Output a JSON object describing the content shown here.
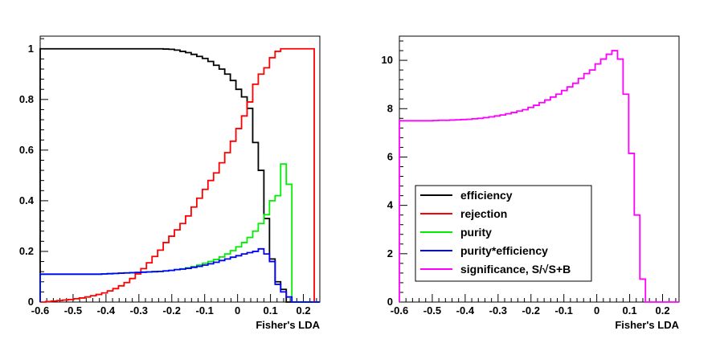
{
  "chart_data": [
    {
      "type": "line",
      "step": true,
      "xlabel": "Fisher's LDA",
      "ylabel": "",
      "xlim": [
        -0.6,
        0.25
      ],
      "ylim": [
        0,
        1.05
      ],
      "xticks": [
        -0.6,
        -0.5,
        -0.4,
        -0.3,
        -0.2,
        -0.1,
        0,
        0.1,
        0.2
      ],
      "xtick_labels": [
        "-0.6",
        "-0.5",
        "-0.4",
        "-0.3",
        "-0.2",
        "-0.1",
        "0",
        "0.1",
        "0.2"
      ],
      "yticks": [
        0,
        0.2,
        0.4,
        0.6,
        0.8,
        1
      ],
      "ytick_labels": [
        "0",
        "0.2",
        "0.4",
        "0.6",
        "0.8",
        "1"
      ],
      "grid": false,
      "legend": false,
      "bin_edges": [
        -0.6,
        -0.583,
        -0.566,
        -0.549,
        -0.532,
        -0.515,
        -0.498,
        -0.481,
        -0.464,
        -0.447,
        -0.43,
        -0.413,
        -0.396,
        -0.379,
        -0.362,
        -0.345,
        -0.328,
        -0.311,
        -0.294,
        -0.277,
        -0.26,
        -0.243,
        -0.226,
        -0.209,
        -0.192,
        -0.175,
        -0.158,
        -0.141,
        -0.124,
        -0.107,
        -0.09,
        -0.073,
        -0.056,
        -0.039,
        -0.022,
        -0.005,
        0.012,
        0.029,
        0.046,
        0.063,
        0.08,
        0.097,
        0.114,
        0.131,
        0.148,
        0.165,
        0.182,
        0.199,
        0.216,
        0.233,
        0.25
      ],
      "series": [
        {
          "name": "efficiency",
          "color": "#000000",
          "values": [
            1,
            1,
            1,
            1,
            1,
            1,
            1,
            1,
            1,
            1,
            1,
            1,
            1,
            1,
            1,
            1,
            1,
            1,
            1,
            1,
            1,
            1,
            0.999,
            0.998,
            0.995,
            0.99,
            0.985,
            0.978,
            0.97,
            0.962,
            0.95,
            0.935,
            0.92,
            0.9,
            0.875,
            0.84,
            0.81,
            0.765,
            0.63,
            0.52,
            0.33,
            0.17,
            0.08,
            0.05,
            0,
            0,
            0,
            0,
            0,
            0
          ]
        },
        {
          "name": "rejection",
          "color": "#ff0000",
          "values": [
            0,
            0.002,
            0.004,
            0.006,
            0.008,
            0.01,
            0.013,
            0.016,
            0.02,
            0.025,
            0.03,
            0.036,
            0.044,
            0.053,
            0.064,
            0.077,
            0.093,
            0.111,
            0.132,
            0.155,
            0.18,
            0.205,
            0.235,
            0.26,
            0.285,
            0.31,
            0.34,
            0.375,
            0.41,
            0.445,
            0.48,
            0.51,
            0.55,
            0.59,
            0.635,
            0.685,
            0.735,
            0.79,
            0.86,
            0.9,
            0.925,
            0.965,
            0.99,
            1,
            1,
            1,
            1,
            1,
            1,
            0
          ]
        },
        {
          "name": "purity",
          "color": "#00ee00",
          "values": [
            0.11,
            0.11,
            0.11,
            0.11,
            0.11,
            0.11,
            0.11,
            0.11,
            0.11,
            0.11,
            0.11,
            0.111,
            0.112,
            0.113,
            0.114,
            0.115,
            0.116,
            0.117,
            0.118,
            0.119,
            0.12,
            0.121,
            0.123,
            0.125,
            0.128,
            0.131,
            0.135,
            0.14,
            0.146,
            0.153,
            0.16,
            0.168,
            0.178,
            0.19,
            0.203,
            0.218,
            0.235,
            0.255,
            0.28,
            0.31,
            0.345,
            0.4,
            0.42,
            0.545,
            0.465,
            0,
            0,
            0,
            0,
            0
          ]
        },
        {
          "name": "purity*efficiency",
          "color": "#0000ff",
          "values": [
            0.11,
            0.11,
            0.11,
            0.11,
            0.11,
            0.11,
            0.11,
            0.11,
            0.11,
            0.11,
            0.11,
            0.111,
            0.112,
            0.113,
            0.114,
            0.115,
            0.116,
            0.117,
            0.118,
            0.119,
            0.12,
            0.121,
            0.123,
            0.125,
            0.128,
            0.13,
            0.133,
            0.137,
            0.141,
            0.146,
            0.151,
            0.157,
            0.164,
            0.17,
            0.177,
            0.183,
            0.19,
            0.195,
            0.2,
            0.21,
            0.19,
            0.16,
            0.07,
            0.04,
            0.02,
            0,
            0,
            0,
            0,
            0
          ]
        }
      ]
    },
    {
      "type": "line",
      "step": true,
      "xlabel": "Fisher's LDA",
      "ylabel": "",
      "xlim": [
        -0.6,
        0.25
      ],
      "ylim": [
        0,
        11
      ],
      "xticks": [
        -0.6,
        -0.5,
        -0.4,
        -0.3,
        -0.2,
        -0.1,
        0,
        0.1,
        0.2
      ],
      "xtick_labels": [
        "-0.6",
        "-0.5",
        "-0.4",
        "-0.3",
        "-0.2",
        "-0.1",
        "0",
        "0.1",
        "0.2"
      ],
      "yticks": [
        0,
        2,
        4,
        6,
        8,
        10
      ],
      "ytick_labels": [
        "0",
        "2",
        "4",
        "6",
        "8",
        "10"
      ],
      "grid": false,
      "legend_position": "bottom-left",
      "legend": [
        {
          "label": "efficiency",
          "color": "#000000"
        },
        {
          "label": "rejection",
          "color": "#ff0000"
        },
        {
          "label": "purity",
          "color": "#00ee00"
        },
        {
          "label": "purity*efficiency",
          "color": "#0000ff"
        },
        {
          "label": "significance, S/√S+B",
          "color": "#ff00ff"
        }
      ],
      "bin_edges": [
        -0.6,
        -0.583,
        -0.566,
        -0.549,
        -0.532,
        -0.515,
        -0.498,
        -0.481,
        -0.464,
        -0.447,
        -0.43,
        -0.413,
        -0.396,
        -0.379,
        -0.362,
        -0.345,
        -0.328,
        -0.311,
        -0.294,
        -0.277,
        -0.26,
        -0.243,
        -0.226,
        -0.209,
        -0.192,
        -0.175,
        -0.158,
        -0.141,
        -0.124,
        -0.107,
        -0.09,
        -0.073,
        -0.056,
        -0.039,
        -0.022,
        -0.005,
        0.012,
        0.029,
        0.046,
        0.063,
        0.08,
        0.097,
        0.114,
        0.131,
        0.148,
        0.165,
        0.182,
        0.199,
        0.216,
        0.233,
        0.25
      ],
      "series": [
        {
          "name": "significance, S/√S+B",
          "color": "#ff00ff",
          "values": [
            7.5,
            7.5,
            7.5,
            7.5,
            7.5,
            7.5,
            7.51,
            7.52,
            7.52,
            7.53,
            7.54,
            7.55,
            7.56,
            7.58,
            7.6,
            7.63,
            7.66,
            7.7,
            7.74,
            7.79,
            7.84,
            7.9,
            7.96,
            8.05,
            8.14,
            8.25,
            8.36,
            8.48,
            8.6,
            8.75,
            8.9,
            9.05,
            9.25,
            9.45,
            9.6,
            9.85,
            10.05,
            10.25,
            10.4,
            10.05,
            8.6,
            6.15,
            3.6,
            0.95,
            0,
            0,
            0,
            0,
            0,
            0
          ]
        }
      ]
    }
  ]
}
